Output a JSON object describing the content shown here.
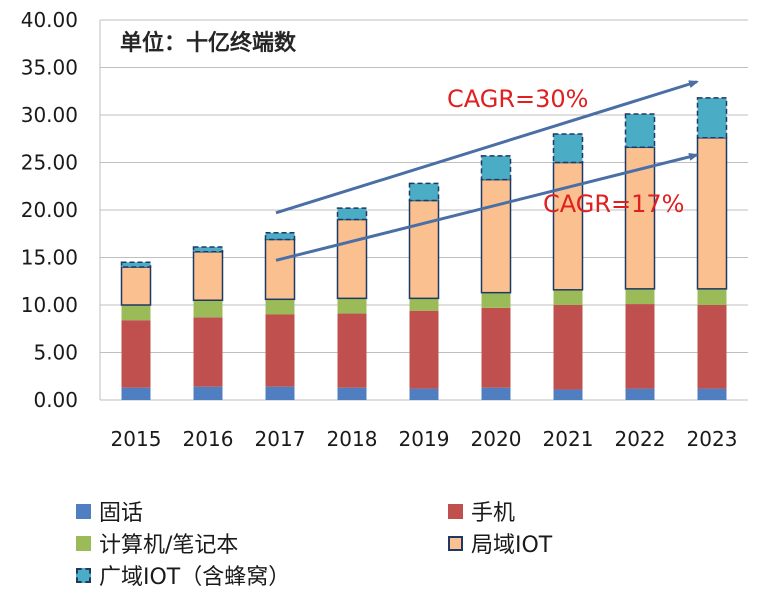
{
  "chart_data": {
    "type": "bar",
    "stacked": true,
    "categories": [
      "2015",
      "2016",
      "2017",
      "2018",
      "2019",
      "2020",
      "2021",
      "2022",
      "2023"
    ],
    "series": [
      {
        "name": "固话",
        "color": "#4f7fc1",
        "values": [
          1.3,
          1.4,
          1.4,
          1.3,
          1.2,
          1.3,
          1.1,
          1.2,
          1.2
        ]
      },
      {
        "name": "手机",
        "color": "#c0504d",
        "values": [
          7.1,
          7.3,
          7.6,
          7.8,
          8.2,
          8.4,
          8.9,
          8.9,
          8.8
        ]
      },
      {
        "name": "计算机/笔记本",
        "color": "#9bbb59",
        "values": [
          1.6,
          1.8,
          1.6,
          1.6,
          1.3,
          1.6,
          1.6,
          1.6,
          1.7
        ]
      },
      {
        "name": "局域IOT",
        "color": "#fac090",
        "stroke": "#1f3864",
        "values": [
          4.0,
          5.1,
          6.3,
          8.3,
          10.3,
          11.9,
          13.4,
          14.9,
          15.9
        ]
      },
      {
        "name": "广域IOT（含蜂窝）",
        "color": "#4bacc6",
        "stroke": "#1f3864",
        "dashed": true,
        "values": [
          0.5,
          0.5,
          0.7,
          1.2,
          1.8,
          2.5,
          3.0,
          3.5,
          4.2
        ]
      }
    ],
    "yticks": [
      "0.00",
      "5.00",
      "10.00",
      "15.00",
      "20.00",
      "25.00",
      "30.00",
      "35.00",
      "40.00"
    ],
    "ylim": [
      0,
      40
    ],
    "unit_label": "单位：十亿终端数",
    "annotations": [
      {
        "text": "CAGR=30%",
        "from": [
          "2017",
          19.7
        ],
        "to": [
          "2023",
          33.5
        ]
      },
      {
        "text": "CAGR=17%",
        "from": [
          "2017",
          14.7
        ],
        "to": [
          "2023",
          25.8
        ]
      }
    ]
  }
}
